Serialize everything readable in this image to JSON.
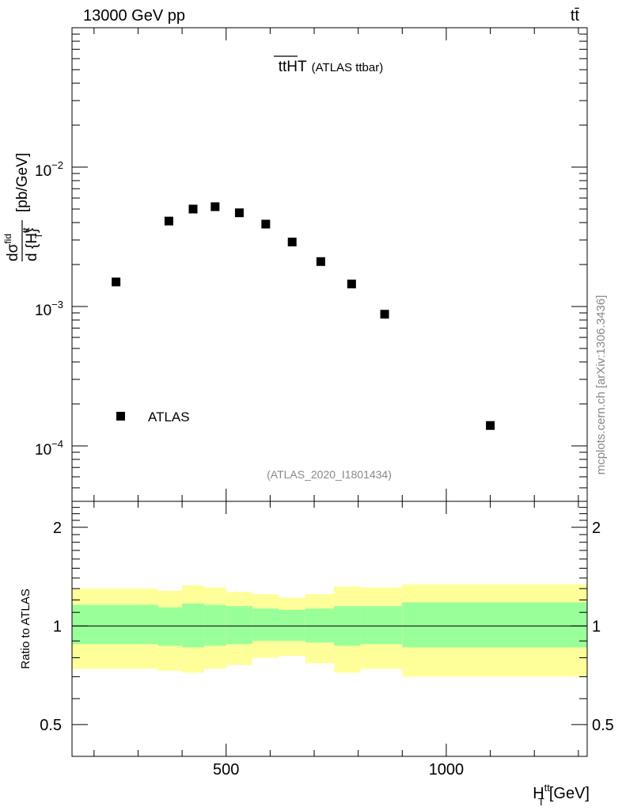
{
  "header": {
    "energy_label": "13000 GeV pp",
    "process_label": "tt̄"
  },
  "side_credit": "mcplots.cern.ch [arXiv:1306.3436]",
  "chart_data": {
    "type": "scatter",
    "title_main": "ttHT",
    "title_sub": "(ATLAS ttbar)",
    "analysis_id": "(ATLAS_2020_I1801434)",
    "ylabel_top": "d σ^fid / d {H_T^tt} [pb/GeV]",
    "ylabel_top_parts": {
      "numerator": "dσ",
      "sup": "fid",
      "denominator": "d {H",
      "denominator_sup": "tt",
      "denominator_sub": "T",
      "denominator_close": "}",
      "units": "[pb/GeV]"
    },
    "ylabel_bottom": "Ratio to ATLAS",
    "xlabel_parts": {
      "base": "H",
      "sup": "tt",
      "sub": "T",
      "units": "[GeV]"
    },
    "legend": [
      {
        "label": "ATLAS",
        "marker": "square"
      }
    ],
    "xlim": [
      150,
      1320
    ],
    "ylim_top": [
      4e-05,
      0.1
    ],
    "ylim_bottom": [
      0.4,
      2.4
    ],
    "x_ticks": [
      {
        "value": 500,
        "label": "500"
      },
      {
        "value": 1000,
        "label": "1000"
      }
    ],
    "y_ticks_top": [
      {
        "value": 0.01,
        "base": "10",
        "exp": "−2"
      },
      {
        "value": 0.001,
        "base": "10",
        "exp": "−3"
      },
      {
        "value": 0.0001,
        "base": "10",
        "exp": "−4"
      }
    ],
    "y_ticks_bottom": [
      {
        "value": 0.5,
        "label": "0.5"
      },
      {
        "value": 1,
        "label": "1"
      },
      {
        "value": 2,
        "label": "2"
      }
    ],
    "series": [
      {
        "name": "ATLAS",
        "points": [
          {
            "x": 250,
            "y": 0.0015
          },
          {
            "x": 370,
            "y": 0.0041
          },
          {
            "x": 425,
            "y": 0.005
          },
          {
            "x": 475,
            "y": 0.0052
          },
          {
            "x": 530,
            "y": 0.0047
          },
          {
            "x": 590,
            "y": 0.0039
          },
          {
            "x": 650,
            "y": 0.0029
          },
          {
            "x": 715,
            "y": 0.0021
          },
          {
            "x": 785,
            "y": 0.00145
          },
          {
            "x": 860,
            "y": 0.00088
          },
          {
            "x": 1100,
            "y": 0.00014
          }
        ]
      }
    ],
    "ratio_bands": [
      {
        "x1": 150,
        "x2": 345,
        "inner": [
          0.88,
          1.16
        ],
        "outer": [
          0.74,
          1.3
        ]
      },
      {
        "x1": 345,
        "x2": 400,
        "inner": [
          0.87,
          1.14
        ],
        "outer": [
          0.73,
          1.28
        ]
      },
      {
        "x1": 400,
        "x2": 450,
        "inner": [
          0.86,
          1.17
        ],
        "outer": [
          0.72,
          1.33
        ]
      },
      {
        "x1": 450,
        "x2": 500,
        "inner": [
          0.87,
          1.16
        ],
        "outer": [
          0.74,
          1.31
        ]
      },
      {
        "x1": 500,
        "x2": 560,
        "inner": [
          0.88,
          1.15
        ],
        "outer": [
          0.76,
          1.27
        ]
      },
      {
        "x1": 560,
        "x2": 620,
        "inner": [
          0.9,
          1.13
        ],
        "outer": [
          0.8,
          1.25
        ]
      },
      {
        "x1": 620,
        "x2": 680,
        "inner": [
          0.9,
          1.12
        ],
        "outer": [
          0.81,
          1.22
        ]
      },
      {
        "x1": 680,
        "x2": 745,
        "inner": [
          0.89,
          1.13
        ],
        "outer": [
          0.77,
          1.25
        ]
      },
      {
        "x1": 745,
        "x2": 805,
        "inner": [
          0.87,
          1.15
        ],
        "outer": [
          0.72,
          1.32
        ]
      },
      {
        "x1": 805,
        "x2": 900,
        "inner": [
          0.88,
          1.15
        ],
        "outer": [
          0.74,
          1.31
        ]
      },
      {
        "x1": 900,
        "x2": 1320,
        "inner": [
          0.86,
          1.18
        ],
        "outer": [
          0.7,
          1.34
        ]
      }
    ],
    "colors": {
      "inner_band": "#99ff99",
      "outer_band": "#ffff99",
      "marker": "#000000",
      "reference_line": "#000000"
    }
  }
}
